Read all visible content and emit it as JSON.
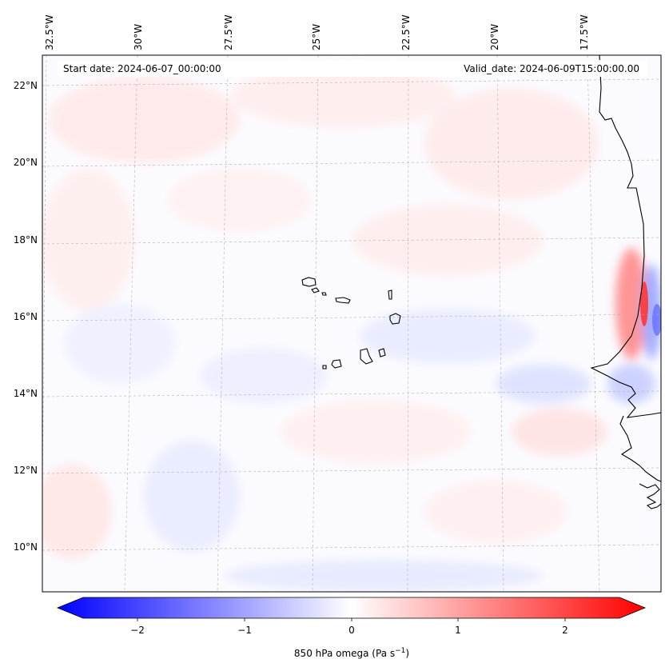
{
  "header": {
    "start_date": "Start date: 2024-06-07_00:00:00",
    "valid_date": "Valid_date: 2024-06-09T15:00:00.00"
  },
  "longitude_labels": [
    "32.5°W",
    "30°W",
    "27.5°W",
    "25°W",
    "22.5°W",
    "20°W",
    "17.5°W"
  ],
  "latitude_labels": [
    "22°N",
    "20°N",
    "18°N",
    "16°N",
    "14°N",
    "12°N",
    "10°N"
  ],
  "colorbar": {
    "label": "850 hPa omega (Pa s",
    "label_sup": "−1",
    "label_end": ")",
    "ticks": [
      "−2",
      "−1",
      "0",
      "1",
      "2"
    ],
    "range": [
      -2.6,
      2.6
    ],
    "colors": {
      "negative": "#0000ff",
      "neutral": "#ffffff",
      "positive": "#ff0000"
    }
  },
  "colors": {
    "coast": "#000000",
    "grid": "#b0b0b0"
  }
}
